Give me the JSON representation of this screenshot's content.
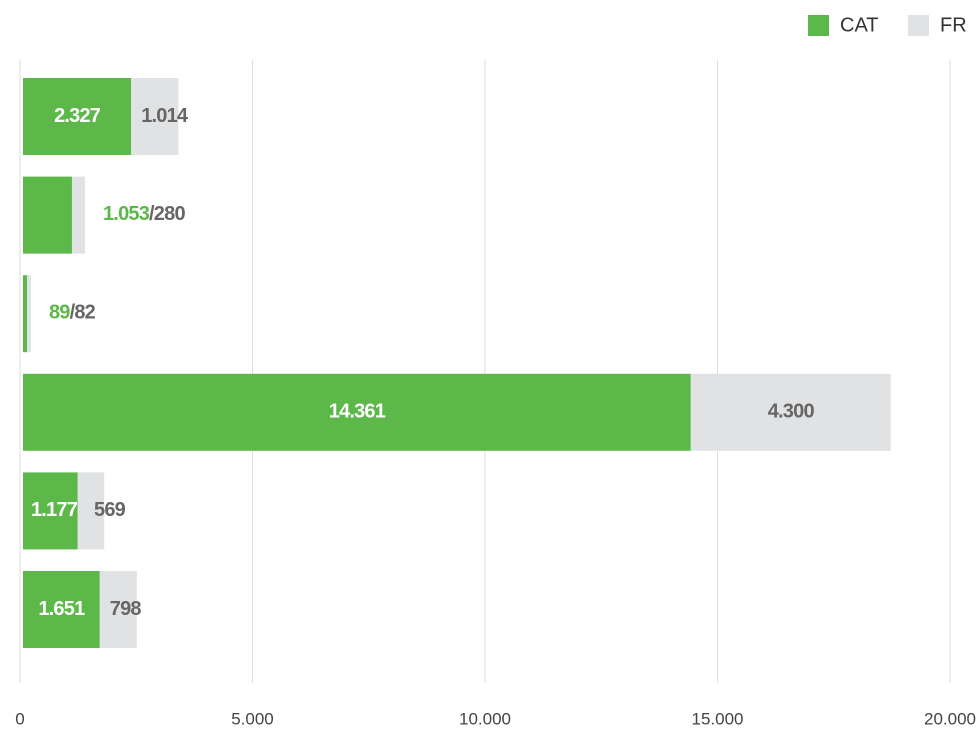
{
  "chart_data": {
    "type": "stacked_bar_horizontal",
    "categories": [
      null,
      null,
      null,
      null,
      null,
      null
    ],
    "series": [
      {
        "name": "CAT",
        "color": "#5cb848",
        "values": [
          2327,
          1053,
          89,
          14361,
          1177,
          1651
        ],
        "value_labels": [
          "2.327",
          "1.053",
          "89",
          "14.361",
          "1.177",
          "1.651"
        ]
      },
      {
        "name": "FR",
        "color": "#e1e2e4",
        "values": [
          1014,
          280,
          82,
          4300,
          569,
          798
        ],
        "value_labels": [
          "1.014",
          "/280",
          "/82",
          "4.300",
          "569",
          "798"
        ]
      }
    ],
    "xlim": [
      0,
      20000
    ],
    "xticks": [
      0,
      {
        "value": 5000,
        "label": "5.000"
      },
      {
        "value": 10000,
        "label": "10.000"
      },
      {
        "value": 15000,
        "label": "15.000"
      },
      {
        "value": 20000,
        "label": "20.000"
      }
    ],
    "grid": true,
    "legend": "top-right"
  }
}
